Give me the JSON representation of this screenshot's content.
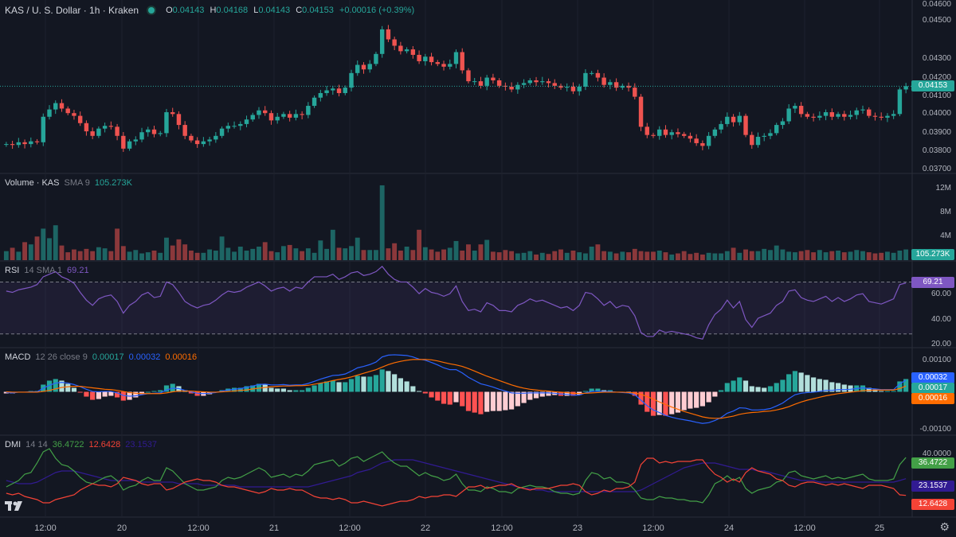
{
  "header": {
    "symbol_title": "KAS / U. S. Dollar · 1h · Kraken",
    "ohlc": [
      {
        "k": "O",
        "v": "0.04143"
      },
      {
        "k": "H",
        "v": "0.04168"
      },
      {
        "k": "L",
        "v": "0.04143"
      },
      {
        "k": "C",
        "v": "0.04153"
      }
    ],
    "change": "+0.00016 (+0.39%)"
  },
  "colors": {
    "up": "#26a69a",
    "down": "#ef5350",
    "rsi": "#7e57c2",
    "macd": "#2962ff",
    "signal": "#ff6d00"
  },
  "price_axis": {
    "labels": [
      "0.04600",
      "0.04500",
      "0.04300",
      "0.04200",
      "0.04100",
      "0.04000",
      "0.03900",
      "0.03800",
      "0.03700"
    ]
  },
  "last_price_label": "0.04153",
  "x_axis": {
    "labels": [
      "12:00",
      "20",
      "12:00",
      "21",
      "12:00",
      "22",
      "12:00",
      "23",
      "12:00",
      "24",
      "12:00",
      "25"
    ]
  },
  "volume_panel": {
    "title": "Volume · KAS",
    "params": "SMA 9",
    "value": "105.273K",
    "axis": [
      "12M",
      "8M",
      "4M"
    ],
    "tag": "105.273K"
  },
  "rsi_panel": {
    "title": "RSI",
    "params": "14 SMA 1",
    "value": "69.21",
    "axis": [
      "60.00",
      "40.00",
      "20.00"
    ],
    "tag": "69.21"
  },
  "macd_panel": {
    "title": "MACD",
    "params": "12 26 close 9",
    "v1": "0.00017",
    "v2": "0.00032",
    "v3": "0.00016",
    "axis": [
      "0.00100",
      "-0.00100"
    ],
    "tags": [
      "0.00032",
      "0.00017",
      "0.00016"
    ]
  },
  "dmi_panel": {
    "title": "DMI",
    "params": "14 14",
    "v1": "36.4722",
    "v2": "12.6428",
    "v3": "23.1537",
    "axis": [
      "40.0000"
    ],
    "tags": [
      "36.4722",
      "23.1537",
      "12.6428"
    ]
  },
  "chart_data": [
    {
      "type": "candlestick",
      "ylim": [
        0.037,
        0.046
      ],
      "close": [
        0.03835,
        0.0383,
        0.03845,
        0.03835,
        0.0385,
        0.03845,
        0.03985,
        0.04025,
        0.0406,
        0.0403,
        0.04005,
        0.0399,
        0.0395,
        0.03905,
        0.0388,
        0.0392,
        0.03935,
        0.0393,
        0.0388,
        0.0381,
        0.0385,
        0.0386,
        0.039,
        0.03915,
        0.0389,
        0.03895,
        0.0401,
        0.04,
        0.0394,
        0.0388,
        0.03855,
        0.03835,
        0.0385,
        0.0386,
        0.0388,
        0.0392,
        0.03935,
        0.03935,
        0.03945,
        0.0397,
        0.03995,
        0.0402,
        0.04005,
        0.03965,
        0.03985,
        0.04,
        0.0398,
        0.04,
        0.03995,
        0.04045,
        0.0409,
        0.04115,
        0.0413,
        0.0414,
        0.04115,
        0.04145,
        0.04225,
        0.0427,
        0.04245,
        0.04275,
        0.0433,
        0.04465,
        0.0441,
        0.04375,
        0.04345,
        0.04355,
        0.04325,
        0.0429,
        0.04315,
        0.04285,
        0.04275,
        0.0426,
        0.04275,
        0.0434,
        0.0424,
        0.0418,
        0.0418,
        0.04155,
        0.042,
        0.04185,
        0.04155,
        0.0415,
        0.04135,
        0.0416,
        0.0417,
        0.04185,
        0.04175,
        0.0418,
        0.0417,
        0.04155,
        0.04145,
        0.0415,
        0.04125,
        0.0415,
        0.04225,
        0.04225,
        0.042,
        0.0416,
        0.04175,
        0.04145,
        0.04155,
        0.04145,
        0.04095,
        0.0393,
        0.03885,
        0.0388,
        0.03915,
        0.03885,
        0.039,
        0.0389,
        0.0388,
        0.03865,
        0.0384,
        0.03825,
        0.0388,
        0.03915,
        0.03945,
        0.03985,
        0.03955,
        0.0399,
        0.03885,
        0.0383,
        0.03875,
        0.0388,
        0.03895,
        0.0394,
        0.0396,
        0.0403,
        0.04045,
        0.04,
        0.03985,
        0.0398,
        0.0399,
        0.0401,
        0.03985,
        0.04,
        0.03985,
        0.03995,
        0.0402,
        0.04025,
        0.0399,
        0.03985,
        0.0398,
        0.0399,
        0.04,
        0.04135,
        0.04153
      ]
    },
    {
      "type": "bar",
      "name": "Volume",
      "values": [
        1.6,
        2.2,
        1.5,
        3.2,
        2.8,
        4.2,
        5.6,
        3.9,
        6.2,
        2.6,
        1.4,
        1.9,
        1.6,
        2.0,
        1.6,
        2.3,
        2.1,
        1.6,
        5.6,
        2.5,
        1.5,
        1.8,
        1.2,
        1.4,
        1.7,
        1.3,
        4.0,
        2.6,
        3.7,
        2.8,
        1.7,
        1.3,
        1.3,
        1.9,
        1.7,
        4.2,
        2.2,
        1.5,
        2.4,
        1.7,
        2.0,
        2.4,
        3.2,
        1.6,
        1.4,
        2.5,
        2.7,
        2.1,
        1.6,
        2.1,
        1.3,
        3.5,
        2.0,
        5.4,
        2.2,
        2.1,
        2.5,
        4.0,
        1.8,
        1.8,
        1.8,
        13.3,
        2.1,
        3.0,
        1.7,
        2.4,
        1.8,
        5.4,
        2.3,
        1.9,
        1.5,
        1.9,
        2.2,
        3.4,
        1.7,
        2.8,
        1.7,
        2.8,
        3.6,
        1.5,
        1.4,
        1.8,
        1.6,
        1.2,
        1.3,
        1.6,
        1.0,
        1.3,
        1.1,
        1.6,
        1.9,
        1.3,
        1.7,
        1.4,
        1.2,
        2.4,
        2.8,
        1.6,
        1.5,
        1.2,
        1.5,
        1.4,
        2.0,
        1.6,
        1.5,
        1.5,
        1.7,
        1.4,
        1.0,
        1.2,
        1.6,
        1.1,
        1.3,
        1.0,
        1.3,
        1.2,
        1.2,
        1.6,
        2.2,
        1.3,
        1.9,
        1.6,
        1.6,
        2.0,
        1.8,
        2.6,
        1.9,
        1.5,
        1.4,
        1.6,
        1.8,
        1.4,
        1.8,
        1.4,
        1.6,
        1.7,
        1.4,
        1.5,
        1.8,
        1.6,
        1.4,
        1.2,
        1.3,
        1.5,
        1.3,
        1.7,
        1.9
      ]
    },
    {
      "type": "line",
      "name": "RSI",
      "ylim": [
        20,
        85
      ],
      "values": [
        63,
        62,
        64,
        65,
        66,
        68,
        74,
        76,
        78,
        74,
        72,
        69,
        62,
        56,
        52,
        57,
        59,
        60,
        55,
        46,
        52,
        55,
        60,
        62,
        58,
        59,
        70,
        68,
        62,
        55,
        52,
        50,
        52,
        53,
        56,
        60,
        63,
        62,
        63,
        66,
        68,
        70,
        67,
        63,
        65,
        66,
        63,
        66,
        65,
        70,
        74,
        74,
        74,
        76,
        72,
        74,
        77,
        78,
        75,
        76,
        78,
        82,
        76,
        72,
        70,
        70,
        66,
        61,
        65,
        62,
        61,
        59,
        61,
        67,
        55,
        48,
        49,
        47,
        54,
        52,
        48,
        48,
        47,
        52,
        54,
        57,
        55,
        56,
        54,
        52,
        50,
        51,
        48,
        52,
        62,
        61,
        57,
        52,
        55,
        50,
        52,
        51,
        44,
        31,
        28,
        28,
        33,
        31,
        32,
        31,
        30,
        29,
        27,
        26,
        37,
        45,
        49,
        56,
        50,
        55,
        41,
        35,
        42,
        44,
        46,
        52,
        55,
        63,
        64,
        58,
        56,
        55,
        57,
        59,
        55,
        58,
        55,
        57,
        60,
        61,
        55,
        54,
        53,
        55,
        57,
        68,
        69.21
      ]
    },
    {
      "type": "macd",
      "name": "MACD",
      "ylim": [
        -0.00115,
        0.00115
      ],
      "macd": [
        -2e-05,
        -3e-05,
        -1e-05,
        -1e-05,
        0.0,
        0.0,
        0.0001,
        0.00018,
        0.00024,
        0.00026,
        0.00024,
        0.0002,
        0.00014,
        7e-05,
        1e-05,
        0.0,
        1e-05,
        1e-05,
        -3e-05,
        -0.0001,
        -0.00012,
        -0.00011,
        -8e-05,
        -5e-05,
        -4e-05,
        -3e-05,
        5e-05,
        0.0001,
        9e-05,
        4e-05,
        0.0,
        -4e-05,
        -5e-05,
        -4e-05,
        -2e-05,
        2e-05,
        5e-05,
        7e-05,
        9e-05,
        0.00012,
        0.00016,
        0.0002,
        0.00021,
        0.00019,
        0.00019,
        0.0002,
        0.00018,
        0.00019,
        0.00019,
        0.00023,
        0.00029,
        0.00035,
        0.0004,
        0.00045,
        0.00046,
        0.00049,
        0.00057,
        0.00066,
        0.0007,
        0.00075,
        0.00082,
        0.00096,
        0.00101,
        0.00102,
        0.00101,
        0.001,
        0.00096,
        0.0009,
        0.00087,
        0.00081,
        0.00074,
        0.00066,
        0.00061,
        0.00061,
        0.00052,
        0.0004,
        0.00031,
        0.00022,
        0.00018,
        0.00013,
        7e-05,
        2e-05,
        -3e-05,
        -4e-05,
        -4e-05,
        -3e-05,
        -3e-05,
        -3e-05,
        -3e-05,
        -4e-05,
        -6e-05,
        -7e-05,
        -9e-05,
        -9e-05,
        -3e-05,
        1e-05,
        2e-05,
        1e-05,
        1e-05,
        -1e-05,
        -2e-05,
        -3e-05,
        -8e-05,
        -0.00023,
        -0.00038,
        -0.0005,
        -0.00057,
        -0.00065,
        -0.0007,
        -0.00074,
        -0.00077,
        -0.0008,
        -0.00084,
        -0.00087,
        -0.00085,
        -0.00079,
        -0.00071,
        -0.00059,
        -0.00053,
        -0.00044,
        -0.00045,
        -0.0005,
        -0.0005,
        -0.00049,
        -0.00046,
        -0.00039,
        -0.00031,
        -0.00019,
        -8e-05,
        -4e-05,
        -2e-05,
        -1e-05,
        1e-05,
        4e-05,
        4e-05,
        6e-05,
        6e-05,
        7e-05,
        9e-05,
        0.00011,
        9e-05,
        8e-05,
        6e-05,
        6e-05,
        6e-05,
        0.00022,
        0.00032
      ],
      "signal": [
        0.0,
        -1e-05,
        -1e-05,
        -1e-05,
        -1e-05,
        -1e-05,
        1e-05,
        4e-05,
        8e-05,
        0.00012,
        0.00014,
        0.00015,
        0.00015,
        0.00013,
        0.00011,
        9e-05,
        7e-05,
        6e-05,
        4e-05,
        1e-05,
        -2e-05,
        -4e-05,
        -5e-05,
        -5e-05,
        -5e-05,
        -5e-05,
        -3e-05,
        -0.0,
        2e-05,
        2e-05,
        2e-05,
        1e-05,
        -0.0,
        -1e-05,
        -1e-05,
        -0.0,
        1e-05,
        2e-05,
        4e-05,
        5e-05,
        8e-05,
        0.0001,
        0.00012,
        0.00014,
        0.00015,
        0.00016,
        0.00016,
        0.00017,
        0.00017,
        0.00018,
        0.00021,
        0.00024,
        0.00027,
        0.00031,
        0.00034,
        0.00037,
        0.00041,
        0.00046,
        0.00051,
        0.00056,
        0.00061,
        0.00068,
        0.00075,
        0.0008,
        0.00084,
        0.00087,
        0.00089,
        0.00089,
        0.00089,
        0.00088,
        0.00085,
        0.00081,
        0.00077,
        0.00074,
        0.0007,
        0.00064,
        0.00057,
        0.0005,
        0.00043,
        0.00037,
        0.00031,
        0.00025,
        0.00019,
        0.00014,
        0.0001,
        7e-05,
        5e-05,
        3e-05,
        2e-05,
        0.0,
        -1e-05,
        -2e-05,
        -4e-05,
        -5e-05,
        -4e-05,
        -3e-05,
        -2e-05,
        -1e-05,
        -1e-05,
        -1e-05,
        -1e-05,
        -2e-05,
        -3e-05,
        -7e-05,
        -0.00013,
        -0.0002,
        -0.00028,
        -0.00035,
        -0.00042,
        -0.00048,
        -0.00054,
        -0.00059,
        -0.00064,
        -0.00069,
        -0.00072,
        -0.00073,
        -0.00073,
        -0.0007,
        -0.00067,
        -0.00062,
        -0.00059,
        -0.00057,
        -0.00056,
        -0.00054,
        -0.00053,
        -0.0005,
        -0.00046,
        -0.00041,
        -0.00034,
        -0.00028,
        -0.00023,
        -0.00019,
        -0.00015,
        -0.00011,
        -8e-05,
        -5e-05,
        -3e-05,
        -1e-05,
        1e-05,
        3e-05,
        4e-05,
        5e-05,
        5e-05,
        5e-05,
        5e-05,
        9e-05,
        0.00016
      ]
    },
    {
      "type": "line",
      "name": "DMI",
      "ylim": [
        0,
        48
      ],
      "plus_di": [
        18,
        20,
        22,
        26,
        27,
        33,
        40,
        42,
        36,
        32,
        31,
        28,
        24,
        21,
        20,
        22,
        24,
        25,
        22,
        16,
        18,
        19,
        22,
        24,
        22,
        22,
        30,
        28,
        24,
        20,
        18,
        16,
        16,
        17,
        18,
        22,
        24,
        23,
        24,
        26,
        28,
        30,
        28,
        24,
        25,
        26,
        24,
        26,
        25,
        28,
        32,
        33,
        34,
        35,
        31,
        33,
        36,
        37,
        34,
        36,
        38,
        40,
        36,
        33,
        31,
        31,
        28,
        25,
        27,
        25,
        24,
        22,
        23,
        26,
        20,
        16,
        16,
        15,
        18,
        17,
        15,
        15,
        14,
        17,
        18,
        19,
        18,
        18,
        17,
        15,
        14,
        14,
        13,
        14,
        22,
        27,
        26,
        23,
        24,
        21,
        21,
        20,
        16,
        11,
        10,
        10,
        12,
        11,
        11,
        10,
        10,
        9,
        9,
        8,
        13,
        20,
        22,
        25,
        22,
        24,
        17,
        14,
        16,
        17,
        18,
        21,
        22,
        27,
        28,
        25,
        24,
        23,
        24,
        25,
        23,
        24,
        23,
        24,
        25,
        26,
        23,
        22,
        22,
        22,
        23,
        32,
        36.4722
      ],
      "minus_di": [
        14,
        13,
        14,
        12,
        11,
        10,
        8,
        8,
        10,
        11,
        12,
        13,
        16,
        18,
        20,
        19,
        19,
        18,
        20,
        24,
        23,
        22,
        20,
        19,
        20,
        20,
        16,
        17,
        19,
        21,
        22,
        23,
        22,
        22,
        21,
        19,
        18,
        18,
        17,
        16,
        15,
        14,
        15,
        17,
        16,
        16,
        17,
        16,
        16,
        14,
        12,
        11,
        11,
        10,
        11,
        10,
        8,
        8,
        9,
        8,
        7,
        6,
        7,
        8,
        9,
        9,
        10,
        12,
        11,
        12,
        12,
        13,
        13,
        12,
        15,
        18,
        18,
        19,
        17,
        18,
        19,
        19,
        20,
        18,
        17,
        16,
        17,
        17,
        17,
        18,
        19,
        19,
        20,
        19,
        15,
        13,
        14,
        16,
        15,
        17,
        17,
        18,
        21,
        32,
        36,
        36,
        33,
        34,
        33,
        34,
        34,
        34,
        35,
        35,
        30,
        26,
        24,
        21,
        23,
        21,
        27,
        30,
        28,
        27,
        26,
        23,
        22,
        19,
        18,
        20,
        21,
        21,
        20,
        19,
        20,
        19,
        20,
        19,
        18,
        17,
        19,
        19,
        19,
        18,
        17,
        13,
        12.6428
      ],
      "adx": [
        22,
        21,
        20,
        20,
        20,
        21,
        23,
        25,
        27,
        28,
        28,
        28,
        27,
        26,
        25,
        24,
        23,
        22,
        22,
        22,
        22,
        22,
        21,
        21,
        21,
        21,
        21,
        21,
        20,
        20,
        20,
        20,
        19,
        19,
        19,
        19,
        19,
        19,
        18,
        18,
        18,
        18,
        18,
        18,
        18,
        18,
        18,
        18,
        18,
        18,
        19,
        20,
        21,
        22,
        23,
        24,
        25,
        27,
        28,
        29,
        31,
        33,
        34,
        35,
        35,
        35,
        35,
        34,
        33,
        32,
        31,
        30,
        29,
        28,
        27,
        26,
        25,
        24,
        23,
        22,
        21,
        20,
        19,
        18,
        17,
        17,
        16,
        16,
        15,
        15,
        15,
        15,
        15,
        15,
        15,
        15,
        15,
        15,
        15,
        15,
        15,
        15,
        15,
        16,
        18,
        20,
        22,
        24,
        26,
        28,
        30,
        31,
        32,
        33,
        33,
        33,
        32,
        31,
        30,
        29,
        29,
        29,
        28,
        28,
        27,
        26,
        25,
        24,
        23,
        22,
        22,
        22,
        21,
        21,
        21,
        21,
        21,
        21,
        21,
        21,
        21,
        21,
        21,
        21,
        21,
        22,
        23.1537
      ]
    }
  ]
}
